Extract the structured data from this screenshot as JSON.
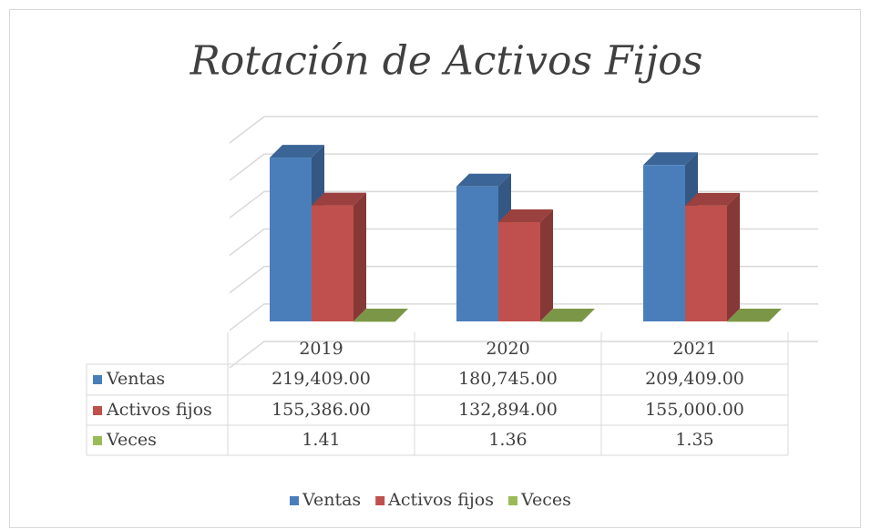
{
  "chart_data": {
    "type": "bar3d",
    "title": "Rotación de Activos Fijos",
    "categories": [
      "2019",
      "2020",
      "2021"
    ],
    "series": [
      {
        "name": "Ventas",
        "color": "#4a7ebb",
        "values": [
          219409,
          180745,
          209409
        ],
        "value_labels": [
          "219,409.00",
          "180,745.00",
          "209,409.00"
        ]
      },
      {
        "name": "Activos fijos",
        "color": "#c0504d",
        "values": [
          155386,
          132894,
          155000
        ],
        "value_labels": [
          "155,386.00",
          "132,894.00",
          "155,000.00"
        ]
      },
      {
        "name": "Veces",
        "color": "#9bbb59",
        "values": [
          1.41,
          1.36,
          1.35
        ],
        "value_labels": [
          "1.41",
          "1.36",
          "1.35"
        ]
      }
    ],
    "ylim": [
      0,
      300000
    ],
    "yticks": [
      0,
      50000,
      100000,
      150000,
      200000,
      250000,
      300000
    ],
    "grid": true,
    "data_table": true,
    "legend": "bottom"
  }
}
